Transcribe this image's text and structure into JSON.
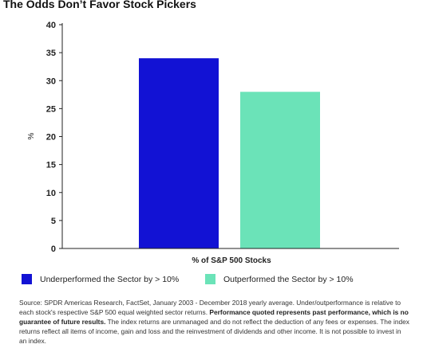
{
  "chart_data": {
    "type": "bar",
    "title": "The Odds Don’t Favor Stock Pickers",
    "xlabel": "% of S&P 500 Stocks",
    "ylabel": "%",
    "ylim": [
      0,
      40
    ],
    "yticks": [
      "0",
      "5",
      "10",
      "15",
      "20",
      "25",
      "30",
      "35",
      "40"
    ],
    "grid": false,
    "legend_position": "bottom",
    "series": [
      {
        "name": "Underperformed the Sector by > 10%",
        "value": 34,
        "color": "#1212d4"
      },
      {
        "name": "Outperformed the Sector by > 10%",
        "value": 28,
        "color": "#6be3b8"
      }
    ]
  },
  "note": {
    "part1": "Source: SPDR Americas Research, FactSet, January 2003 - December 2018 yearly average. Under/outperformance is relative to each stock's respective S&P 500 equal weighted sector returns. ",
    "bold": "Performance quoted represents past performance, which is no guarantee of future results.",
    "part2": " The index returns are unmanaged and do not reflect the deduction of any fees or expenses. The index returns reflect all items of income, gain and loss and the reinvestment of dividends and other income. It is not possible to invest in an index."
  }
}
